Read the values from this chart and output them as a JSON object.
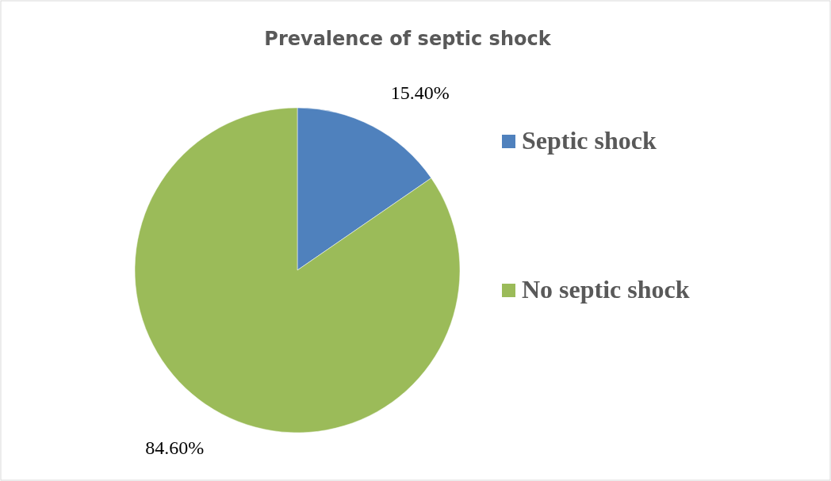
{
  "chart_data": {
    "type": "pie",
    "title": "Prevalence of septic shock",
    "categories": [
      "Septic shock",
      "No septic shock"
    ],
    "values": [
      15.4,
      84.6
    ],
    "colors": [
      "#4f81bd",
      "#9bbb59"
    ],
    "value_labels": [
      "15.40%",
      "84.60%"
    ],
    "legend": "right"
  }
}
